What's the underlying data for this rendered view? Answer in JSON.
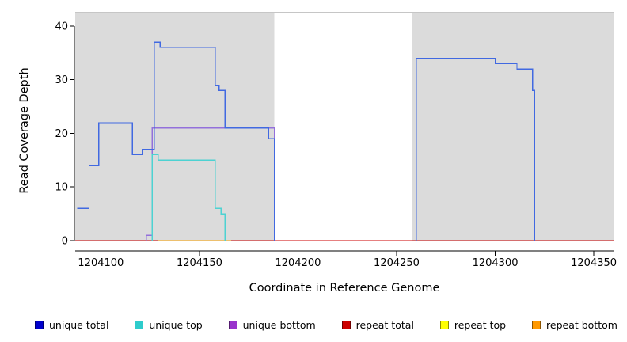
{
  "chart_data": {
    "type": "line",
    "title": "",
    "xlabel": "Coordinate in Reference Genome",
    "ylabel": "Read Coverage Depth",
    "xlim": [
      1204087,
      1204360
    ],
    "ylim": [
      0,
      42.5
    ],
    "x_ticks": [
      "1204100",
      "1204150",
      "1204200",
      "1204250",
      "1204300",
      "1204350"
    ],
    "y_ticks": [
      "0",
      "10",
      "20",
      "30",
      "40"
    ],
    "grid": false,
    "legend_position": "bottom",
    "background_band_color": "#DBDBDB",
    "shaded_regions": [
      {
        "x0": 1204087,
        "x1": 1204188
      },
      {
        "x0": 1204258,
        "x1": 1204360
      }
    ],
    "series": [
      {
        "name": "repeat total",
        "color": "#CC0000",
        "segments": [
          [
            [
              1204087,
              0
            ],
            [
              1204360,
              0
            ]
          ]
        ]
      },
      {
        "name": "repeat top",
        "color": "#FFFF00",
        "segments": []
      },
      {
        "name": "repeat bottom",
        "color": "#FFA500",
        "segments": [
          [
            [
              1204129,
              0
            ],
            [
              1204166,
              0
            ]
          ]
        ]
      },
      {
        "name": "unique bottom",
        "color": "#9370DB",
        "segments": [
          [
            [
              1204123,
              0
            ],
            [
              1204123,
              1
            ],
            [
              1204126,
              1
            ],
            [
              1204126,
              21
            ],
            [
              1204188,
              21
            ],
            [
              1204188,
              0
            ]
          ]
        ]
      },
      {
        "name": "unique top",
        "color": "#4DD2D2",
        "segments": [
          [
            [
              1204126,
              0
            ],
            [
              1204126,
              16
            ],
            [
              1204129,
              16
            ],
            [
              1204129,
              15
            ],
            [
              1204158,
              15
            ],
            [
              1204158,
              6
            ],
            [
              1204161,
              6
            ],
            [
              1204161,
              5
            ],
            [
              1204163,
              5
            ],
            [
              1204163,
              0
            ]
          ]
        ]
      },
      {
        "name": "unique total",
        "color": "#4169E1",
        "segments": [
          [
            [
              1204088,
              6
            ],
            [
              1204094,
              6
            ],
            [
              1204094,
              14
            ],
            [
              1204099,
              14
            ],
            [
              1204099,
              22
            ],
            [
              1204116,
              22
            ],
            [
              1204116,
              16
            ],
            [
              1204121,
              16
            ],
            [
              1204121,
              17
            ],
            [
              1204127,
              17
            ],
            [
              1204127,
              37
            ],
            [
              1204130,
              37
            ],
            [
              1204130,
              36
            ],
            [
              1204158,
              36
            ],
            [
              1204158,
              29
            ],
            [
              1204160,
              29
            ],
            [
              1204160,
              28
            ],
            [
              1204163,
              28
            ],
            [
              1204163,
              21
            ],
            [
              1204185,
              21
            ],
            [
              1204185,
              19
            ],
            [
              1204188,
              19
            ],
            [
              1204188,
              0
            ]
          ],
          [
            [
              1204260,
              0
            ],
            [
              1204260,
              34
            ],
            [
              1204300,
              34
            ],
            [
              1204300,
              33
            ],
            [
              1204311,
              33
            ],
            [
              1204311,
              32
            ],
            [
              1204319,
              32
            ],
            [
              1204319,
              28
            ],
            [
              1204320,
              28
            ],
            [
              1204320,
              0
            ]
          ]
        ]
      }
    ]
  },
  "legend": {
    "items": [
      {
        "label": "unique total",
        "color": "#0000CC"
      },
      {
        "label": "unique top",
        "color": "#2ECCCC"
      },
      {
        "label": "unique bottom",
        "color": "#9933CC"
      },
      {
        "label": "repeat total",
        "color": "#CC0000"
      },
      {
        "label": "repeat top",
        "color": "#FFFF00"
      },
      {
        "label": "repeat bottom",
        "color": "#FF9900"
      }
    ]
  }
}
